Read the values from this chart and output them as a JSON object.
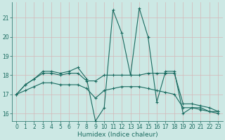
{
  "xlabel": "Humidex (Indice chaleur)",
  "xlim": [
    -0.5,
    23.5
  ],
  "ylim": [
    15.6,
    21.8
  ],
  "yticks": [
    16,
    17,
    18,
    19,
    20,
    21
  ],
  "xticks": [
    0,
    1,
    2,
    3,
    4,
    5,
    6,
    7,
    8,
    9,
    10,
    11,
    12,
    13,
    14,
    15,
    16,
    17,
    18,
    19,
    20,
    21,
    22,
    23
  ],
  "bg_color": "#cce8e4",
  "grid_color": "#aacfcb",
  "line_color": "#1a6b60",
  "series": [
    {
      "x": [
        0,
        1,
        2,
        3,
        4,
        5,
        6,
        7,
        8,
        9,
        10,
        11,
        12,
        13,
        14,
        15,
        16,
        17,
        18,
        19,
        20,
        21,
        22,
        23
      ],
      "y": [
        17.0,
        17.5,
        17.8,
        18.2,
        18.2,
        18.1,
        18.2,
        18.4,
        17.8,
        15.6,
        16.3,
        21.4,
        20.2,
        18.0,
        21.5,
        20.0,
        16.6,
        18.2,
        18.2,
        16.0,
        16.3,
        16.3,
        16.1,
        16.1
      ]
    },
    {
      "x": [
        0,
        1,
        2,
        3,
        4,
        5,
        6,
        7,
        8,
        9,
        10,
        11,
        12,
        13,
        14,
        15,
        16,
        17,
        18,
        19,
        20,
        21,
        22,
        23
      ],
      "y": [
        17.0,
        17.5,
        17.8,
        18.1,
        18.1,
        18.0,
        18.1,
        18.1,
        17.7,
        17.7,
        18.0,
        18.0,
        18.0,
        18.0,
        18.0,
        18.1,
        18.1,
        18.1,
        18.1,
        16.5,
        16.5,
        16.4,
        16.3,
        16.1
      ]
    },
    {
      "x": [
        0,
        1,
        2,
        3,
        4,
        5,
        6,
        7,
        8,
        9,
        10,
        11,
        12,
        13,
        14,
        15,
        16,
        17,
        18,
        19,
        20,
        21,
        22,
        23
      ],
      "y": [
        17.0,
        17.2,
        17.4,
        17.6,
        17.6,
        17.5,
        17.5,
        17.5,
        17.3,
        16.8,
        17.2,
        17.3,
        17.4,
        17.4,
        17.4,
        17.3,
        17.2,
        17.1,
        17.0,
        16.3,
        16.3,
        16.2,
        16.1,
        16.0
      ]
    }
  ]
}
